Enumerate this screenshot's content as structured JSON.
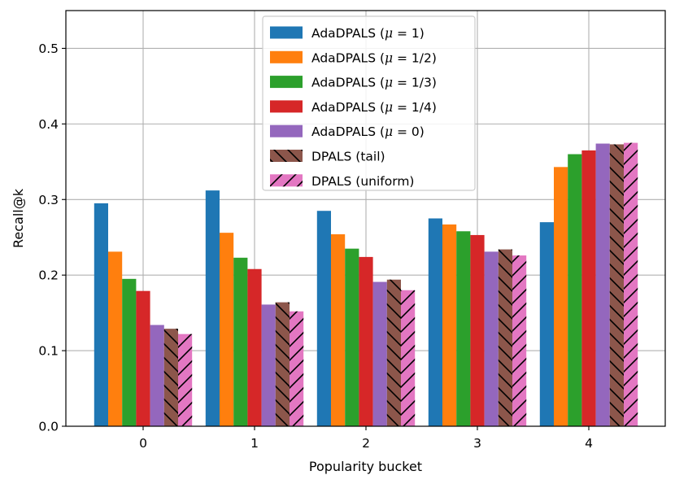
{
  "chart_data": {
    "type": "bar",
    "title": "",
    "xlabel": "Popularity bucket",
    "ylabel": "Recall@k",
    "categories": [
      "0",
      "1",
      "2",
      "3",
      "4"
    ],
    "ylim": [
      0,
      0.55
    ],
    "yticks": [
      0.0,
      0.1,
      0.2,
      0.3,
      0.4,
      0.5
    ],
    "ytick_labels": [
      "0.0",
      "0.1",
      "0.2",
      "0.3",
      "0.4",
      "0.5"
    ],
    "grid": true,
    "legend_position": "top-center",
    "series": [
      {
        "name": "AdaDPALS",
        "mu": "1",
        "color": "#1f77b4",
        "hatch": "none",
        "values": [
          0.295,
          0.312,
          0.285,
          0.275,
          0.27
        ]
      },
      {
        "name": "AdaDPALS",
        "mu": "1/2",
        "color": "#ff7f0e",
        "hatch": "none",
        "values": [
          0.231,
          0.256,
          0.254,
          0.267,
          0.343
        ]
      },
      {
        "name": "AdaDPALS",
        "mu": "1/3",
        "color": "#2ca02c",
        "hatch": "none",
        "values": [
          0.195,
          0.223,
          0.235,
          0.258,
          0.36
        ]
      },
      {
        "name": "AdaDPALS",
        "mu": "1/4",
        "color": "#d62728",
        "hatch": "none",
        "values": [
          0.179,
          0.208,
          0.224,
          0.253,
          0.365
        ]
      },
      {
        "name": "AdaDPALS",
        "mu": "0",
        "color": "#9467bd",
        "hatch": "none",
        "values": [
          0.134,
          0.161,
          0.191,
          0.231,
          0.374
        ]
      },
      {
        "name": "DPALS (tail)",
        "color": "#8c564b",
        "hatch": "back",
        "values": [
          0.129,
          0.164,
          0.194,
          0.234,
          0.373
        ]
      },
      {
        "name": "DPALS (uniform)",
        "color": "#e377c2",
        "hatch": "forward",
        "values": [
          0.122,
          0.152,
          0.18,
          0.226,
          0.375
        ]
      }
    ]
  }
}
